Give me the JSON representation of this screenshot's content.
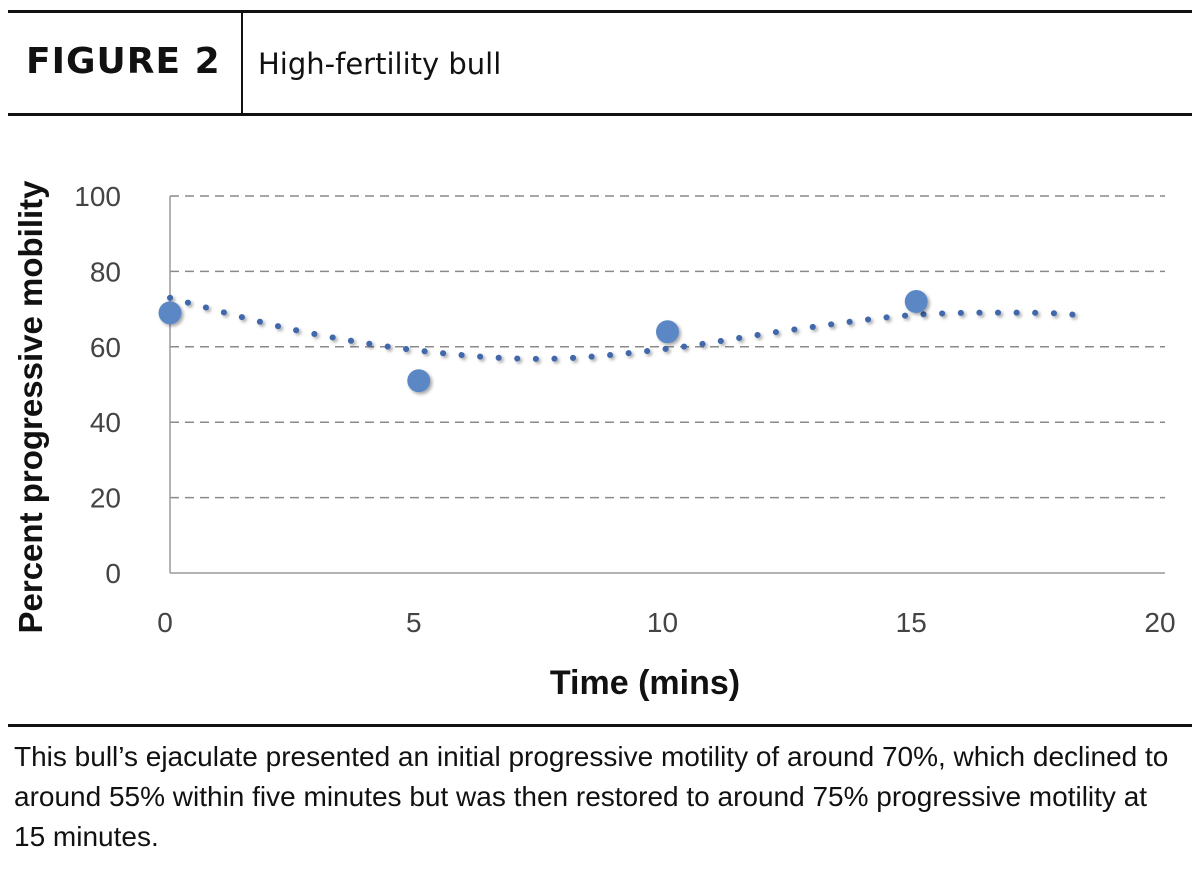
{
  "figure": {
    "label": "FIGURE 2",
    "title": "High-fertility bull",
    "caption": "This bull’s ejaculate presented an initial progressive motility of around 70%, which declined to around 55% within five minutes but was then restored to around 75% progressive motility at 15 minutes."
  },
  "chart_data": {
    "type": "scatter",
    "title": "",
    "xlabel": "Time (mins)",
    "ylabel": "Percent progressive mobility",
    "xlim": [
      0,
      20
    ],
    "ylim": [
      0,
      100
    ],
    "xticks": [
      0,
      5,
      10,
      15,
      20
    ],
    "yticks": [
      0,
      20,
      40,
      60,
      80,
      100
    ],
    "grid": "horizontal dashed",
    "series": [
      {
        "x": [
          0,
          5,
          10,
          15
        ],
        "y": [
          69,
          51,
          64,
          72
        ],
        "color": "#5b87c5"
      }
    ],
    "trendline": {
      "style": "dotted",
      "color": "#3f67ab",
      "x": [
        0,
        2.5,
        5,
        7.5,
        10,
        12.5,
        15,
        17.5,
        18.5
      ],
      "y": [
        73,
        64.5,
        59,
        56.8,
        59.5,
        64.5,
        68.5,
        69,
        68
      ]
    }
  }
}
